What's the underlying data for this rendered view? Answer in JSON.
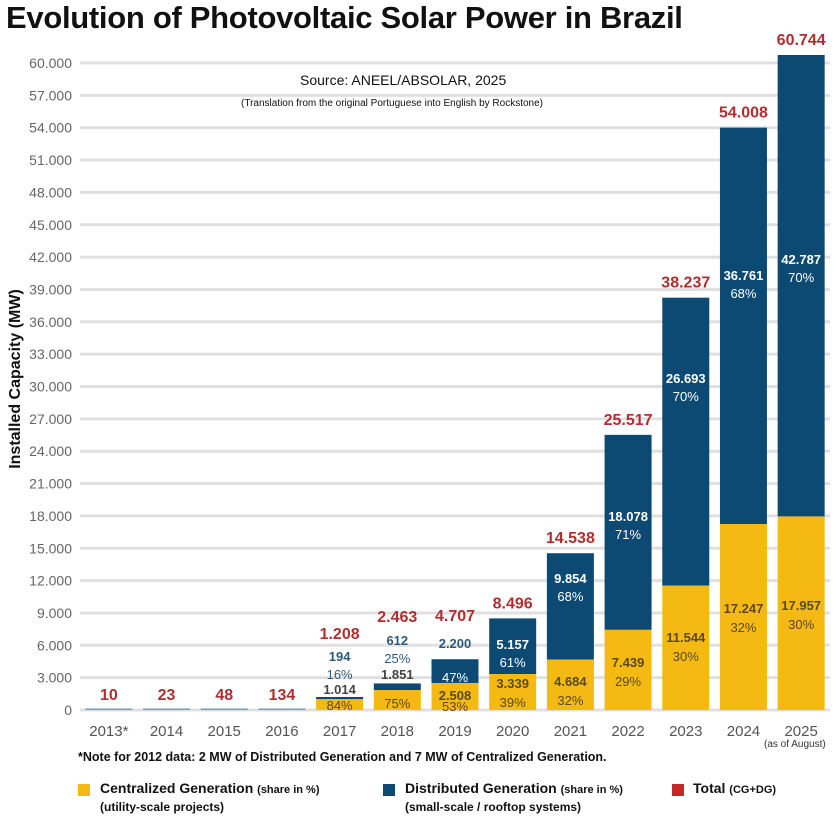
{
  "chart_data": {
    "type": "bar",
    "stacked": true,
    "title": "Evolution of Photovoltaic Solar Power in Brazil",
    "subtitle": "Source: ANEEL/ABSOLAR, 2025",
    "translation_note": "(Translation from the original Portuguese into English by Rockstone)",
    "xlabel": "",
    "ylabel": "Installed Capacity (MW)",
    "ylim": [
      0,
      60000
    ],
    "yticks": [
      0,
      3000,
      6000,
      9000,
      12000,
      15000,
      18000,
      21000,
      24000,
      27000,
      30000,
      33000,
      36000,
      39000,
      42000,
      45000,
      48000,
      51000,
      54000,
      57000,
      60000
    ],
    "ytick_labels": [
      "0",
      "3.000",
      "6.000",
      "9.000",
      "12.000",
      "15.000",
      "18.000",
      "21.000",
      "24.000",
      "27.000",
      "30.000",
      "33.000",
      "36.000",
      "39.000",
      "42.000",
      "45.000",
      "48.000",
      "51.000",
      "54.000",
      "57.000",
      "60.000"
    ],
    "grid": true,
    "categories": [
      "2013*",
      "2014",
      "2015",
      "2016",
      "2017",
      "2018",
      "2019",
      "2020",
      "2021",
      "2022",
      "2023",
      "2024",
      "2025"
    ],
    "category_note_2025": "(as of August)",
    "series": [
      {
        "name": "Centralized Generation",
        "color": "#f5b914",
        "values": [
          null,
          null,
          null,
          null,
          1014,
          1851,
          2508,
          3339,
          4684,
          7439,
          11544,
          17247,
          17957
        ],
        "labels": [
          "",
          "",
          "",
          "",
          "1.014",
          "1.851",
          "2.508",
          "3.339",
          "4.684",
          "7.439",
          "11.544",
          "17.247",
          "17.957"
        ],
        "shares": [
          "",
          "",
          "",
          "",
          "84%",
          "75%",
          "53%",
          "39%",
          "32%",
          "29%",
          "30%",
          "32%",
          "30%"
        ]
      },
      {
        "name": "Distributed Generation",
        "color": "#0c4a73",
        "values": [
          null,
          null,
          null,
          null,
          194,
          612,
          2200,
          5157,
          9854,
          18078,
          26693,
          36761,
          42787
        ],
        "labels": [
          "",
          "",
          "",
          "",
          "194",
          "612",
          "2.200",
          "5.157",
          "9.854",
          "18.078",
          "26.693",
          "36.761",
          "42.787"
        ],
        "shares": [
          "",
          "",
          "",
          "",
          "16%",
          "25%",
          "47%",
          "61%",
          "68%",
          "71%",
          "70%",
          "68%",
          "70%"
        ]
      }
    ],
    "totals": [
      10,
      23,
      48,
      134,
      1208,
      2463,
      4707,
      8496,
      14538,
      25517,
      38237,
      54008,
      60744
    ],
    "total_labels": [
      "10",
      "23",
      "48",
      "134",
      "1.208",
      "2.463",
      "4.707",
      "8.496",
      "14.538",
      "25.517",
      "38.237",
      "54.008",
      "60.744"
    ],
    "total_color": "#b32d2e",
    "footnote": "*Note for 2012 data: 2 MW of Distributed Generation and 7 MW of Centralized Generation.",
    "legend": {
      "placement": "bottom",
      "items": [
        {
          "label": "Centralized Generation",
          "qualifier": "(share in %)",
          "sub": "(utility-scale projects)",
          "color": "#f5b914"
        },
        {
          "label": "Distributed Generation",
          "qualifier": "(share in %)",
          "sub": "(small-scale / rooftop systems)",
          "color": "#0c4a73"
        },
        {
          "label": "Total",
          "qualifier": "(CG+DG)",
          "sub": "",
          "color": "#c62828"
        }
      ]
    }
  }
}
